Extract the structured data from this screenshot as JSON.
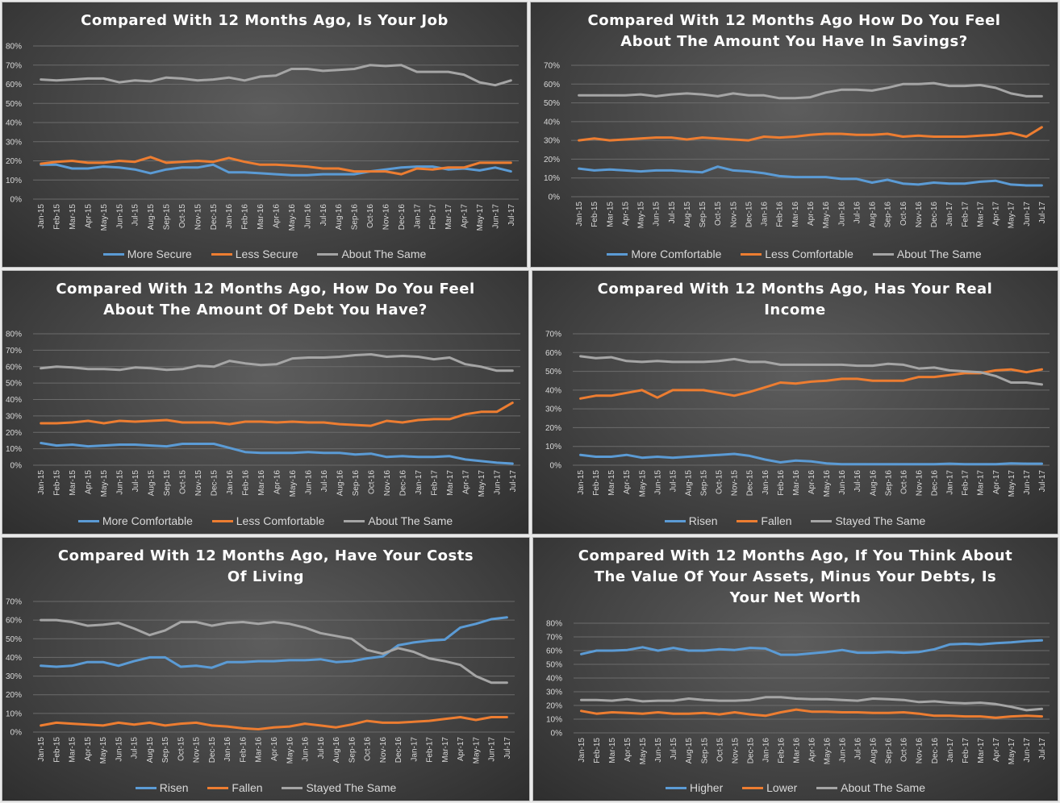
{
  "colors": {
    "more": "#5b9bd5",
    "less": "#ed7d31",
    "same": "#a5a5a5",
    "grid": "#6b6b6b",
    "text": "#d9d9d9"
  },
  "months": [
    "Jan-15",
    "Feb-15",
    "Mar-15",
    "Apr-15",
    "May-15",
    "Jun-15",
    "Jul-15",
    "Aug-15",
    "Sep-15",
    "Oct-15",
    "Nov-15",
    "Dec-15",
    "Jan-16",
    "Feb-16",
    "Mar-16",
    "Apr-16",
    "May-16",
    "Jun-16",
    "Jul-16",
    "Aug-16",
    "Sep-16",
    "Oct-16",
    "Nov-16",
    "Dec-16",
    "Jan-17",
    "Feb-17",
    "Mar-17",
    "Apr-17",
    "May-17",
    "Jun-17",
    "Jul-17"
  ],
  "chart_data": [
    {
      "type": "line",
      "title_lines": [
        "Compared With 12 Months Ago, Is Your Job"
      ],
      "ylim": [
        0,
        80
      ],
      "yticks": [
        "0%",
        "10%",
        "20%",
        "30%",
        "40%",
        "50%",
        "60%",
        "70%",
        "80%"
      ],
      "legend": "bottom",
      "series": [
        {
          "name": "More Secure",
          "color": "#5b9bd5",
          "values": [
            18,
            18,
            16,
            16,
            17,
            16.5,
            15.5,
            13.5,
            15.5,
            16.5,
            16.5,
            18,
            14,
            14,
            13.5,
            13,
            12.5,
            12.5,
            13,
            13,
            13,
            14.5,
            15.5,
            16.5,
            17,
            17,
            15.5,
            16,
            15,
            16.5,
            14.5
          ]
        },
        {
          "name": "Less Secure",
          "color": "#ed7d31",
          "values": [
            18.5,
            19.5,
            20,
            19,
            19,
            20,
            19.5,
            22,
            19,
            19.5,
            20,
            19.5,
            21.5,
            19.5,
            18,
            18,
            17.5,
            17,
            16,
            16,
            14.5,
            14.5,
            14.5,
            13,
            16,
            15.5,
            16.5,
            16.5,
            19,
            19,
            19
          ]
        },
        {
          "name": "About The Same",
          "color": "#a5a5a5",
          "values": [
            62.5,
            62,
            62.5,
            63,
            63,
            61,
            62,
            61.5,
            63.5,
            63,
            62,
            62.5,
            63.5,
            62,
            64,
            64.5,
            68,
            68,
            67,
            67.5,
            68,
            70,
            69.5,
            70,
            66.5,
            66.5,
            66.5,
            65,
            61,
            59.5,
            62
          ]
        }
      ]
    },
    {
      "type": "line",
      "title_lines": [
        "Compared With 12 Months Ago How Do You Feel",
        "About The Amount You Have In Savings?"
      ],
      "ylim": [
        0,
        70
      ],
      "yticks": [
        "0%",
        "10%",
        "20%",
        "30%",
        "40%",
        "50%",
        "60%",
        "70%"
      ],
      "legend": "bottom",
      "series": [
        {
          "name": "More Comfortable",
          "color": "#5b9bd5",
          "values": [
            15,
            14,
            14.5,
            14,
            13.5,
            14,
            14,
            13.5,
            13,
            16,
            14,
            13.5,
            12.5,
            11,
            10.5,
            10.5,
            10.5,
            9.5,
            9.5,
            7.5,
            9,
            7,
            6.5,
            7.5,
            7,
            7,
            8,
            8.5,
            6.5,
            6,
            6
          ]
        },
        {
          "name": "Less Comfortable",
          "color": "#ed7d31",
          "values": [
            30,
            31,
            30,
            30.5,
            31,
            31.5,
            31.5,
            30.5,
            31.5,
            31,
            30.5,
            30,
            32,
            31.5,
            32,
            33,
            33.5,
            33.5,
            33,
            33,
            33.5,
            32,
            32.5,
            32,
            32,
            32,
            32.5,
            33,
            34,
            32,
            37
          ]
        },
        {
          "name": "About The Same",
          "color": "#a5a5a5",
          "values": [
            54,
            54,
            54,
            54,
            54.5,
            53.5,
            54.5,
            55,
            54.5,
            53.5,
            55,
            54,
            54,
            52.5,
            52.5,
            53,
            55.5,
            57,
            57,
            56.5,
            58,
            60,
            60,
            60.5,
            59,
            59,
            59.5,
            58,
            55,
            53.5,
            53.5
          ]
        }
      ]
    },
    {
      "type": "line",
      "title_lines": [
        "Compared With 12 Months Ago, How Do You Feel",
        "About The Amount Of Debt You Have?"
      ],
      "ylim": [
        0,
        80
      ],
      "yticks": [
        "0%",
        "10%",
        "20%",
        "30%",
        "40%",
        "50%",
        "60%",
        "70%",
        "80%"
      ],
      "legend": "bottom",
      "series": [
        {
          "name": "More Comfortable",
          "color": "#5b9bd5",
          "values": [
            13.5,
            12,
            12.5,
            11.5,
            12,
            12.5,
            12.5,
            12,
            11.5,
            13,
            13,
            13,
            10.5,
            8,
            7.5,
            7.5,
            7.5,
            8,
            7.5,
            7.5,
            6.5,
            7,
            5,
            5.5,
            5,
            5,
            5.5,
            3.5,
            2.5,
            1.5,
            1
          ]
        },
        {
          "name": "Less Comfortable",
          "color": "#ed7d31",
          "values": [
            25.5,
            25.5,
            26,
            27,
            25.5,
            27,
            26.5,
            27,
            27.5,
            26,
            26,
            26,
            25,
            26.5,
            26.5,
            26,
            26.5,
            26,
            26,
            25,
            24.5,
            24,
            27,
            26,
            27.5,
            28,
            28,
            31,
            32.5,
            32.5,
            38
          ]
        },
        {
          "name": "About The Same",
          "color": "#a5a5a5",
          "values": [
            59,
            60,
            59.5,
            58.5,
            58.5,
            58,
            59.5,
            59,
            58,
            58.5,
            60.5,
            60,
            63.5,
            62,
            61,
            61.5,
            65,
            65.5,
            65.5,
            66,
            67,
            67.5,
            66,
            66.5,
            66,
            64.5,
            65.5,
            61.5,
            60,
            57.5,
            57.5
          ]
        }
      ]
    },
    {
      "type": "line",
      "title_lines": [
        "Compared With 12 Months Ago, Has Your Real",
        "Income"
      ],
      "ylim": [
        0,
        70
      ],
      "yticks": [
        "0%",
        "10%",
        "20%",
        "30%",
        "40%",
        "50%",
        "60%",
        "70%"
      ],
      "legend": "bottom",
      "series": [
        {
          "name": "Risen",
          "color": "#5b9bd5",
          "values": [
            5.5,
            4.5,
            4.5,
            5.5,
            4,
            4.5,
            4,
            4.5,
            5,
            5.5,
            6,
            5,
            3,
            1.5,
            2.5,
            2,
            1,
            0.5,
            0.5,
            0.5,
            0.5,
            0.5,
            0.5,
            0.5,
            0.8,
            0.5,
            0.5,
            0.5,
            1,
            0.8,
            0.8
          ]
        },
        {
          "name": "Fallen",
          "color": "#ed7d31",
          "values": [
            35.5,
            37,
            37,
            38.5,
            40,
            36,
            40,
            40,
            40,
            38.5,
            37,
            39,
            41.5,
            44,
            43.5,
            44.5,
            45,
            46,
            46,
            45,
            45,
            45,
            47,
            47,
            48,
            49,
            49,
            50.5,
            51,
            49.5,
            51
          ]
        },
        {
          "name": "Stayed The Same",
          "color": "#a5a5a5",
          "values": [
            58,
            57,
            57.5,
            55.5,
            55,
            55.5,
            55,
            55,
            55,
            55.5,
            56.5,
            55,
            55,
            53.5,
            53.5,
            53.5,
            53.5,
            53.5,
            53,
            53,
            54,
            53.5,
            51.5,
            52,
            50.5,
            50,
            49.5,
            47.5,
            44,
            44,
            43
          ]
        }
      ]
    },
    {
      "type": "line",
      "title_lines": [
        "Compared With 12 Months Ago, Have Your Costs",
        "Of Living"
      ],
      "ylim": [
        0,
        70
      ],
      "yticks": [
        "0%",
        "10%",
        "20%",
        "30%",
        "40%",
        "50%",
        "60%",
        "70%"
      ],
      "legend": "bottom",
      "series": [
        {
          "name": "Risen",
          "color": "#5b9bd5",
          "values": [
            35.5,
            35,
            35.5,
            37.5,
            37.5,
            35.5,
            38,
            40,
            40,
            35,
            35.5,
            34.5,
            37.5,
            37.5,
            38,
            38,
            38.5,
            38.5,
            39,
            37.5,
            38,
            39.5,
            40.5,
            46.5,
            48,
            49,
            49.5,
            56,
            58,
            60.5,
            61.5
          ]
        },
        {
          "name": "Fallen",
          "color": "#ed7d31",
          "values": [
            3.5,
            5,
            4.5,
            4,
            3.5,
            5,
            4,
            5,
            3.5,
            4.5,
            5,
            3.5,
            3,
            2,
            1.5,
            2.5,
            3,
            4.5,
            3.5,
            2.5,
            4,
            6,
            5,
            5,
            5.5,
            6,
            7,
            8,
            6.5,
            8,
            8
          ]
        },
        {
          "name": "Stayed The Same",
          "color": "#a5a5a5",
          "values": [
            60,
            60,
            59,
            57,
            57.5,
            58.5,
            55.5,
            52,
            54.5,
            59,
            59,
            57,
            58.5,
            59,
            58,
            59,
            58,
            56,
            53,
            51.5,
            50,
            44,
            42,
            45,
            43,
            39.5,
            38,
            36,
            30,
            26.5,
            26.5
          ]
        }
      ]
    },
    {
      "type": "line",
      "title_lines": [
        "Compared With 12 Months Ago, If You Think About",
        "The Value Of Your Assets, Minus Your Debts, Is",
        "Your Net Worth"
      ],
      "ylim": [
        0,
        80
      ],
      "yticks": [
        "0%",
        "10%",
        "20%",
        "30%",
        "40%",
        "50%",
        "60%",
        "70%",
        "80%"
      ],
      "legend": "bottom",
      "series": [
        {
          "name": "Higher",
          "color": "#5b9bd5",
          "values": [
            57.5,
            60,
            60,
            60.5,
            62.5,
            60,
            62,
            60,
            60,
            61,
            60.5,
            62,
            61.5,
            57,
            57,
            58,
            59,
            60.5,
            58.5,
            58.5,
            59,
            58.5,
            59,
            61,
            64.5,
            65,
            64.5,
            65.5,
            66,
            67,
            67.5
          ]
        },
        {
          "name": "Lower",
          "color": "#ed7d31",
          "values": [
            16,
            14,
            15,
            14.5,
            14,
            15,
            14,
            14,
            14.5,
            13.5,
            15,
            13.5,
            12.5,
            15,
            17,
            15.5,
            15.5,
            15,
            15,
            14.5,
            14.5,
            15,
            14,
            12.5,
            12.5,
            12,
            12,
            11,
            12,
            12.5,
            12
          ]
        },
        {
          "name": "About The Same",
          "color": "#a5a5a5",
          "values": [
            24,
            24,
            23.5,
            24.5,
            23,
            23.5,
            23.5,
            25,
            24,
            23.5,
            23.5,
            24,
            26,
            26,
            25,
            24.5,
            24.5,
            24,
            23.5,
            25,
            24.5,
            24,
            22.5,
            23,
            22,
            21.5,
            22,
            21,
            19,
            16.5,
            17.5
          ]
        }
      ]
    }
  ]
}
